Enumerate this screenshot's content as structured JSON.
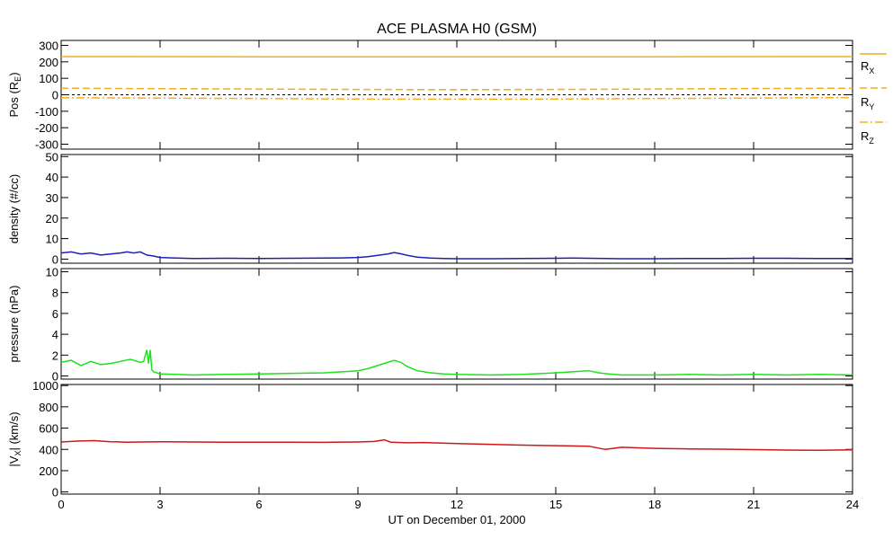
{
  "chart_data": {
    "title": "ACE PLASMA H0 (GSM)",
    "type": "line",
    "xlabel": "UT on December 01, 2000",
    "xlim": [
      0,
      24
    ],
    "x_ticks": [
      "0",
      "3",
      "6",
      "9",
      "12",
      "15",
      "18",
      "21",
      "24"
    ],
    "grid": false,
    "panels": [
      {
        "id": "pos",
        "ylabel": "Pos (R",
        "ylabel_sub": "E",
        "ylabel_end": ")",
        "ylim": [
          -330,
          330
        ],
        "y_ticks": [
          -300,
          -200,
          -100,
          0,
          100,
          200,
          300
        ],
        "y_tick_labels": [
          "-300",
          "-200",
          "-100",
          "0",
          "100",
          "200",
          "300"
        ],
        "zero_line": true,
        "legend": [
          {
            "name": "R",
            "sub": "X",
            "color": "#f0b020",
            "dash": "solid"
          },
          {
            "name": "R",
            "sub": "Y",
            "color": "#f0b020",
            "dash": "dashed"
          },
          {
            "name": "R",
            "sub": "Z",
            "color": "#f0b020",
            "dash": "dashdot"
          }
        ],
        "series": [
          {
            "name": "R",
            "sub": "X",
            "color": "#f0b020",
            "dash": "solid",
            "x": [
              0,
              6,
              12,
              18,
              24
            ],
            "y": [
              232,
              231,
              230,
              231,
              232
            ]
          },
          {
            "name": "R",
            "sub": "Y",
            "color": "#f0b020",
            "dash": "dashed",
            "x": [
              0,
              3,
              6,
              9,
              12,
              15,
              18,
              21,
              24
            ],
            "y": [
              40,
              37,
              35,
              32,
              31,
              32,
              35,
              38,
              40
            ]
          },
          {
            "name": "R",
            "sub": "Z",
            "color": "#f0b020",
            "dash": "dashdot",
            "x": [
              0,
              3,
              6,
              9,
              12,
              15,
              18,
              21,
              24
            ],
            "y": [
              -18,
              -20,
              -23,
              -26,
              -27,
              -26,
              -23,
              -20,
              -17
            ]
          }
        ]
      },
      {
        "id": "density",
        "ylabel": "density (#/cc)",
        "ylim": [
          -2,
          51
        ],
        "y_ticks": [
          0,
          10,
          20,
          30,
          40,
          50
        ],
        "y_tick_labels": [
          "0",
          "10",
          "20",
          "30",
          "40",
          "50"
        ],
        "series": [
          {
            "color": "#2020b0",
            "dash": "solid",
            "x": [
              0,
              0.3,
              0.6,
              0.9,
              1.2,
              1.5,
              1.8,
              2.0,
              2.2,
              2.4,
              2.6,
              2.8,
              3.0,
              3.5,
              4,
              5,
              6,
              7,
              8,
              8.5,
              9,
              9.3,
              9.6,
              9.9,
              10.1,
              10.3,
              10.5,
              10.8,
              11.2,
              11.6,
              12,
              13,
              14,
              15,
              15.5,
              16,
              16.5,
              17,
              18,
              19,
              20,
              21,
              22,
              23,
              24
            ],
            "y": [
              3,
              3.5,
              2.5,
              3,
              2,
              2.5,
              3,
              3.5,
              3,
              3.5,
              2,
              1.5,
              0.8,
              0.5,
              0.3,
              0.4,
              0.3,
              0.4,
              0.5,
              0.6,
              0.8,
              1.2,
              1.8,
              2.5,
              3.2,
              2.6,
              1.8,
              1.0,
              0.5,
              0.3,
              0.2,
              0.2,
              0.3,
              0.4,
              0.5,
              0.4,
              0.3,
              0.2,
              0.2,
              0.3,
              0.3,
              0.4,
              0.4,
              0.3,
              0.3
            ]
          }
        ]
      },
      {
        "id": "pressure",
        "ylabel": "pressure (nPa)",
        "ylim": [
          -0.3,
          10.3
        ],
        "y_ticks": [
          0,
          2,
          4,
          6,
          8,
          10
        ],
        "y_tick_labels": [
          "0",
          "2",
          "4",
          "6",
          "8",
          "10"
        ],
        "series": [
          {
            "color": "#20e020",
            "dash": "solid",
            "x": [
              0,
              0.3,
              0.6,
              0.9,
              1.2,
              1.5,
              1.8,
              2.1,
              2.4,
              2.5,
              2.6,
              2.65,
              2.7,
              2.75,
              2.8,
              3.0,
              3.5,
              4,
              5,
              6,
              7,
              8,
              8.5,
              9,
              9.3,
              9.6,
              9.9,
              10.1,
              10.3,
              10.5,
              10.8,
              11.2,
              11.6,
              12,
              13,
              14,
              15,
              15.5,
              16,
              16.3,
              16.6,
              17,
              18,
              19,
              20,
              21,
              22,
              23,
              24
            ],
            "y": [
              1.3,
              1.5,
              1.0,
              1.4,
              1.1,
              1.2,
              1.4,
              1.6,
              1.3,
              1.4,
              2.5,
              1.2,
              2.5,
              0.6,
              0.4,
              0.2,
              0.15,
              0.1,
              0.15,
              0.2,
              0.25,
              0.3,
              0.4,
              0.5,
              0.7,
              1.0,
              1.3,
              1.5,
              1.3,
              0.9,
              0.5,
              0.3,
              0.2,
              0.15,
              0.1,
              0.15,
              0.3,
              0.4,
              0.5,
              0.3,
              0.2,
              0.1,
              0.1,
              0.15,
              0.1,
              0.15,
              0.1,
              0.15,
              0.1
            ]
          }
        ]
      },
      {
        "id": "vx",
        "ylabel": "|V",
        "ylabel_sub": "X",
        "ylabel_end": "| (km/s)",
        "ylim": [
          -20,
          1010
        ],
        "y_ticks": [
          0,
          200,
          400,
          600,
          800,
          1000
        ],
        "y_tick_labels": [
          "0",
          "200",
          "400",
          "600",
          "800",
          "1000"
        ],
        "series": [
          {
            "color": "#cc1818",
            "dash": "solid",
            "x": [
              0,
              0.5,
              1,
              1.5,
              2,
              3,
              4,
              5,
              6,
              7,
              8,
              9,
              9.5,
              9.8,
              10,
              10.5,
              11,
              12,
              13,
              14,
              15,
              16,
              16.5,
              17,
              18,
              19,
              20,
              21,
              22,
              23,
              24
            ],
            "y": [
              470,
              478,
              482,
              472,
              468,
              472,
              470,
              468,
              468,
              467,
              466,
              470,
              475,
              490,
              468,
              462,
              465,
              455,
              448,
              440,
              435,
              430,
              400,
              420,
              410,
              405,
              402,
              398,
              394,
              392,
              395
            ]
          }
        ]
      }
    ]
  }
}
